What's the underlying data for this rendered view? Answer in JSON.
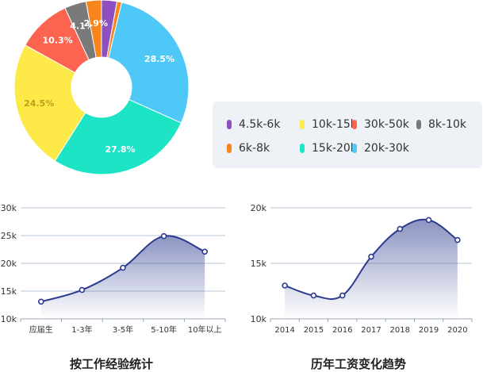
{
  "chart_data": [
    {
      "type": "pie",
      "title": "",
      "slices": [
        {
          "label": "4.5k-6k",
          "value": 2.9,
          "display": "",
          "color": "#8e4fbf"
        },
        {
          "label": "6k-8k",
          "value": 0.9,
          "display": "",
          "color": "#f9861d"
        },
        {
          "label": "20k-30k",
          "value": 28.5,
          "display": "28.5%",
          "color": "#4ec8f7"
        },
        {
          "label": "15k-20k",
          "value": 27.8,
          "display": "27.8%",
          "color": "#1ee4c6"
        },
        {
          "label": "10k-15k",
          "value": 24.5,
          "display": "24.5%",
          "color": "#fde948"
        },
        {
          "label": "30k-50k",
          "value": 10.3,
          "display": "10.3%",
          "color": "#fc6450"
        },
        {
          "label": "8k-10k",
          "value": 4.1,
          "display": "4.1%",
          "color": "#7a7a7a"
        },
        {
          "label": "6k-8k",
          "value": 2.9,
          "display": "2.9%",
          "color": "#f9861d"
        }
      ],
      "legend_rows": [
        [
          {
            "label": "4.5k-6k",
            "color": "#8e4fbf"
          },
          {
            "label": "10k-15k",
            "color": "#fde948"
          },
          {
            "label": "30k-50k",
            "color": "#fc6450"
          },
          {
            "label": "8k-10k",
            "color": "#7a7a7a"
          }
        ],
        [
          {
            "label": "6k-8k",
            "color": "#f9861d"
          },
          {
            "label": "15k-20k",
            "color": "#1ee4c6"
          },
          {
            "label": "20k-30k",
            "color": "#4ec8f7"
          }
        ]
      ],
      "legend_placement": "right"
    },
    {
      "type": "line",
      "title": "按工作经验统计",
      "categories": [
        "应届生",
        "1-3年",
        "3-5年",
        "5-10年",
        "10年以上"
      ],
      "values": [
        13.1,
        15.2,
        19.2,
        24.9,
        22.1
      ],
      "ylim": [
        10,
        30
      ],
      "yticks": [
        "10k",
        "15k",
        "20k",
        "25k",
        "30k"
      ],
      "ytick_values": [
        10,
        15,
        20,
        25,
        30
      ],
      "smooth": true,
      "area_fill": true,
      "line_color": "#2c3b8f",
      "grid": true
    },
    {
      "type": "line",
      "title": "历年工资变化趋势",
      "categories": [
        "2014",
        "2015",
        "2016",
        "2017",
        "2018",
        "2019",
        "2020"
      ],
      "values": [
        13.0,
        12.1,
        12.1,
        15.6,
        18.1,
        18.9,
        17.1
      ],
      "ylim": [
        10,
        20
      ],
      "yticks": [
        "10k",
        "15k",
        "20k"
      ],
      "ytick_values": [
        10,
        15,
        20
      ],
      "smooth": true,
      "area_fill": true,
      "line_color": "#2c3b8f",
      "grid": true
    }
  ]
}
